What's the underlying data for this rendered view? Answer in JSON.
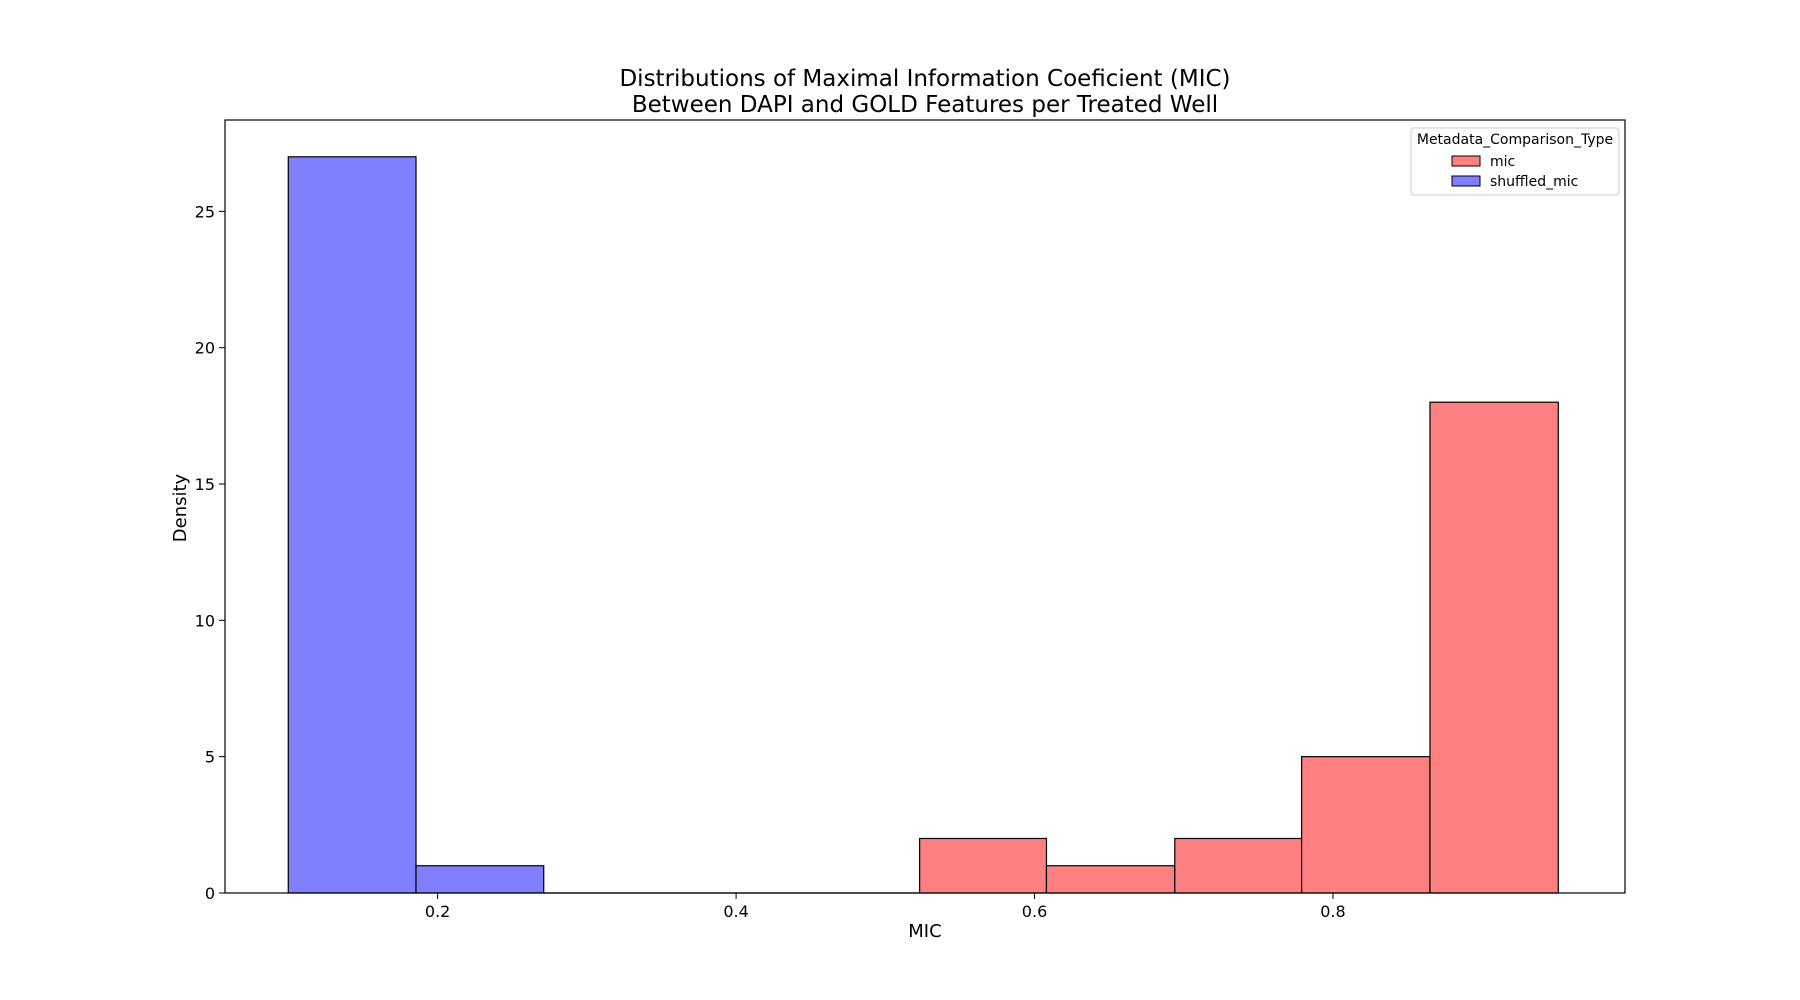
{
  "chart_data": {
    "type": "bar",
    "title_lines": [
      "Distributions of Maximal Information Coeficient (MIC)",
      "Between DAPI and GOLD Features per Treated Well"
    ],
    "xlabel": "MIC",
    "ylabel": "Density",
    "xlim": [
      0.0575,
      0.9957
    ],
    "ylim": [
      0,
      28.35
    ],
    "x_ticks": [
      {
        "value": 0.2,
        "label": "0.2"
      },
      {
        "value": 0.4,
        "label": "0.4"
      },
      {
        "value": 0.6,
        "label": "0.6"
      },
      {
        "value": 0.8,
        "label": "0.8"
      }
    ],
    "y_ticks": [
      {
        "value": 0,
        "label": "0"
      },
      {
        "value": 5,
        "label": "5"
      },
      {
        "value": 10,
        "label": "10"
      },
      {
        "value": 15,
        "label": "15"
      },
      {
        "value": 20,
        "label": "20"
      },
      {
        "value": 25,
        "label": "25"
      }
    ],
    "grid": false,
    "legend": {
      "title": "Metadata_Comparison_Type",
      "placement": "top-right"
    },
    "series": [
      {
        "name": "mic",
        "color": "#ff8080",
        "edge_color": "#000000",
        "bins": [
          {
            "x0": 0.523,
            "x1": 0.608,
            "value": 2
          },
          {
            "x0": 0.608,
            "x1": 0.694,
            "value": 1
          },
          {
            "x0": 0.694,
            "x1": 0.779,
            "value": 2
          },
          {
            "x0": 0.779,
            "x1": 0.865,
            "value": 5
          },
          {
            "x0": 0.865,
            "x1": 0.951,
            "value": 18
          }
        ]
      },
      {
        "name": "shuffled_mic",
        "color": "#8080ff",
        "edge_color": "#000000",
        "bins": [
          {
            "x0": 0.0999,
            "x1": 0.1855,
            "value": 27
          },
          {
            "x0": 0.1855,
            "x1": 0.2711,
            "value": 1
          }
        ]
      }
    ],
    "baseline_line": {
      "x0": 0.2711,
      "x1": 0.523,
      "value": 0
    }
  }
}
